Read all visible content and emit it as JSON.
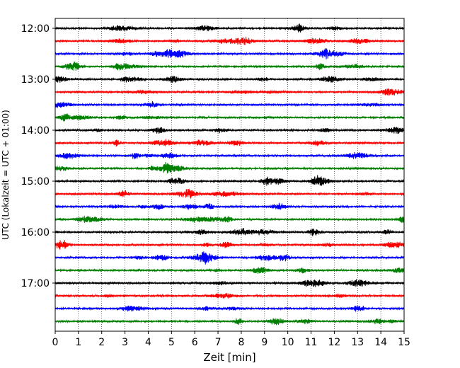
{
  "chart_data": {
    "type": "line",
    "title": "",
    "xlabel": "Zeit  [min]",
    "ylabel": "UTC (Lokalzeit = UTC + 01:00)",
    "xlim": [
      0,
      15
    ],
    "x_ticks": [
      "0",
      "1",
      "2",
      "3",
      "4",
      "5",
      "6",
      "7",
      "8",
      "9",
      "10",
      "11",
      "12",
      "13",
      "14",
      "15"
    ],
    "y_ticks": [
      "12:00",
      "13:00",
      "14:00",
      "15:00",
      "16:00",
      "17:00"
    ],
    "trace_minutes": 15,
    "grid": "vertical dotted",
    "colors": [
      "#000000",
      "#ff0000",
      "#0000ff",
      "#008000"
    ],
    "traces": [
      {
        "start": "12:00",
        "color": "#000000"
      },
      {
        "start": "12:15",
        "color": "#ff0000"
      },
      {
        "start": "12:30",
        "color": "#0000ff"
      },
      {
        "start": "12:45",
        "color": "#008000"
      },
      {
        "start": "13:00",
        "color": "#000000"
      },
      {
        "start": "13:15",
        "color": "#ff0000"
      },
      {
        "start": "13:30",
        "color": "#0000ff"
      },
      {
        "start": "13:45",
        "color": "#008000"
      },
      {
        "start": "14:00",
        "color": "#000000"
      },
      {
        "start": "14:15",
        "color": "#ff0000"
      },
      {
        "start": "14:30",
        "color": "#0000ff"
      },
      {
        "start": "14:45",
        "color": "#008000"
      },
      {
        "start": "15:00",
        "color": "#000000"
      },
      {
        "start": "15:15",
        "color": "#ff0000"
      },
      {
        "start": "15:30",
        "color": "#0000ff"
      },
      {
        "start": "15:45",
        "color": "#008000"
      },
      {
        "start": "16:00",
        "color": "#000000"
      },
      {
        "start": "16:15",
        "color": "#ff0000"
      },
      {
        "start": "16:30",
        "color": "#0000ff"
      },
      {
        "start": "16:45",
        "color": "#008000"
      },
      {
        "start": "17:00",
        "color": "#000000"
      },
      {
        "start": "17:15",
        "color": "#ff0000"
      },
      {
        "start": "17:30",
        "color": "#0000ff"
      },
      {
        "start": "17:45",
        "color": "#008000"
      }
    ]
  }
}
